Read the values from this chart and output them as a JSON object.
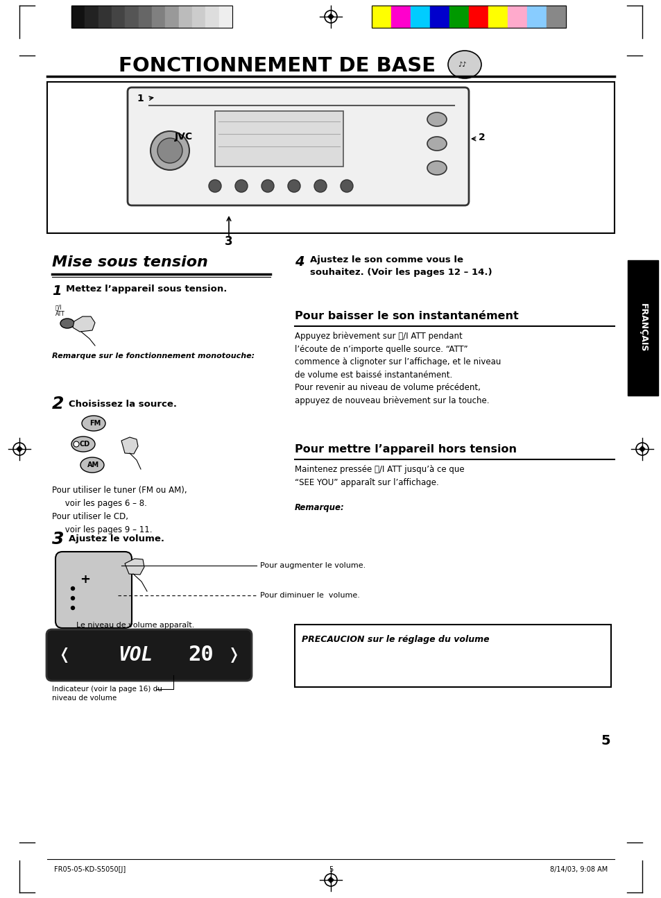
{
  "title": "FONCTIONNEMENT DE BASE",
  "bg_color": "#ffffff",
  "footer_left": "FR05-05-KD-S5050[J]",
  "footer_center": "5",
  "footer_right": "8/14/03, 9:08 AM",
  "section_title": "Mise sous tension",
  "step1_num": "1",
  "step1_title": "Mettez l’appareil sous tension.",
  "step1_note": "Remarque sur le fonctionnement monotouche:",
  "step2_num": "2",
  "step2_title": "Choisissez la source.",
  "step2_text": "Pour utiliser le tuner (FM ou AM),\n     voir les pages 6 – 8.\nPour utiliser le CD,\n     voir les pages 9 – 11.",
  "step3_num": "3",
  "step3_title": "Ajustez le volume.",
  "step3_text1": "Pour augmenter le volume.",
  "step3_text2": "Pour diminuer le  volume.",
  "step3_text3": "Le niveau de volume apparaît.",
  "step3_caption": "Indicateur (voir la page 16) du\nniveau de volume",
  "step4_num": "4",
  "step4_title": "Ajustez le son comme vous le\nsouhaitez. (Voir les pages 12 – 14.)",
  "section2_title": "Pour baisser le son instantanément",
  "section2_text": "Appuyez brièvement sur ⏻/I ATT pendant\nl’écoute de n’importe quelle source. “ATT”\ncommence à clignoter sur l’affichage, et le niveau\nde volume est baissé instantanément.\nPour revenir au niveau de volume précédent,\nappuyez de nouveau brièvement sur la touche.",
  "section3_title": "Pour mettre l’appareil hors tension",
  "section3_text": "Maintenez pressée ⏻/I ATT jusqu’à ce que\n“SEE YOU” apparaît sur l’affichage.",
  "section3_note": "Remarque:",
  "precaution_title": "PRECAUCION sur le réglage du volume",
  "sidebar_text": "FRANÇAIS",
  "page_num": "5",
  "dark_strip_colors": [
    "#111111",
    "#222222",
    "#333333",
    "#444444",
    "#555555",
    "#666666",
    "#808080",
    "#999999",
    "#bbbbbb",
    "#cccccc",
    "#dddddd",
    "#eeeeee"
  ],
  "color_strip_colors": [
    "#ffff00",
    "#ff00cc",
    "#00ccff",
    "#0000cc",
    "#009900",
    "#ff0000",
    "#ffff00",
    "#ffaacc",
    "#88ccff",
    "#888888"
  ]
}
